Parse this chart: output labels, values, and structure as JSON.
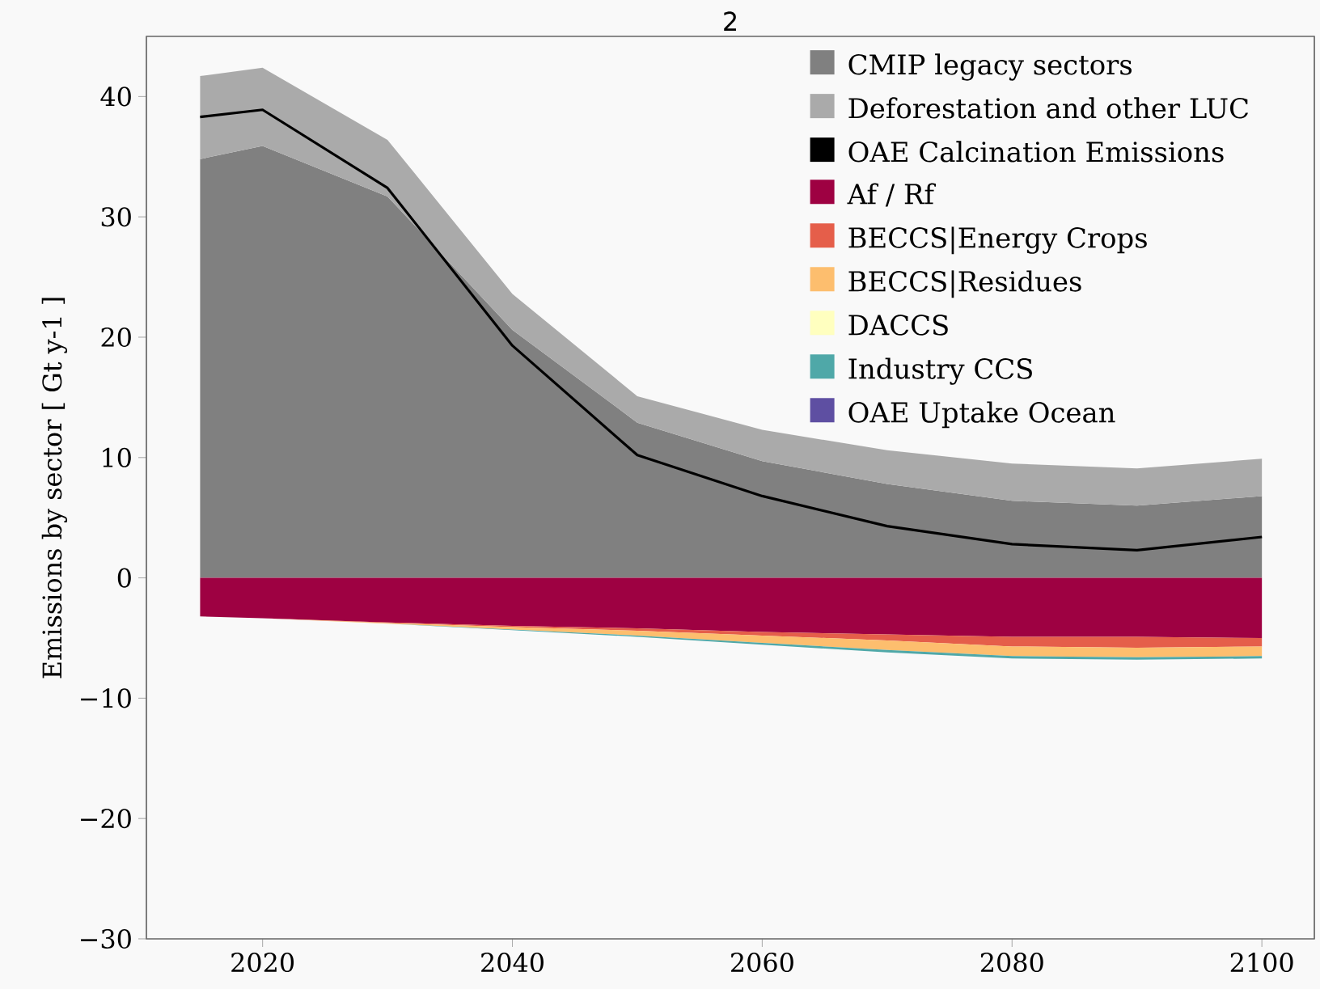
{
  "chart_data": [
    {
      "type": "area",
      "title": "2",
      "ylabel": "Emissions by sector [ Gt y-1 ]",
      "x": [
        2015,
        2020,
        2030,
        2040,
        2050,
        2060,
        2070,
        2080,
        2090,
        2100
      ],
      "xlim": [
        2010.7,
        2104.2
      ],
      "xticks": [
        2020,
        2040,
        2060,
        2080,
        2100
      ],
      "ylim": [
        -30,
        45
      ],
      "yticks": [
        {
          "value": -30,
          "label": "−30"
        },
        {
          "value": -20,
          "label": "−20"
        },
        {
          "value": -10,
          "label": "−10"
        },
        0,
        10,
        20,
        30,
        40
      ],
      "stacked": true,
      "legend": "top right",
      "series": [
        {
          "name": "CMIP legacy sectors",
          "color": "#808080",
          "values": [
            34.8,
            35.9,
            31.7,
            20.6,
            12.9,
            9.7,
            7.8,
            6.4,
            6.0,
            6.8
          ]
        },
        {
          "name": "Deforestation and other LUC",
          "color": "#aaaaaa",
          "values": [
            6.9,
            6.5,
            4.7,
            3.0,
            2.2,
            2.6,
            2.8,
            3.1,
            3.1,
            3.1
          ]
        },
        {
          "name": "OAE Calcination Emissions",
          "color": "#000000",
          "values": [
            null,
            null,
            null,
            null,
            null,
            null,
            null,
            null,
            null,
            null
          ]
        },
        {
          "type": "line",
          "color": "#000000",
          "values": [
            38.3,
            38.9,
            32.4,
            19.3,
            10.2,
            6.8,
            4.3,
            2.8,
            2.3,
            3.4
          ]
        }
      ]
    },
    {
      "type": "area",
      "x": [
        2015,
        2020,
        2030,
        2040,
        2050,
        2060,
        2070,
        2080,
        2090,
        2100
      ],
      "xlim": [
        2010.7,
        2104.2
      ],
      "xticks": [
        2020,
        2040,
        2060,
        2080,
        2100
      ],
      "ylim": [
        -30,
        45
      ],
      "yticks": [
        -30,
        -20,
        -10,
        0,
        10,
        20,
        30,
        40
      ],
      "tick_labels": false,
      "stacked": true,
      "legend": "top right",
      "series": [
        {
          "name": "Af / Rf",
          "color": "#9e0142",
          "values": [
            -3.2,
            -3.35,
            -3.7,
            -4.0,
            -4.2,
            -4.5,
            -4.7,
            -4.9,
            -4.9,
            -5.0
          ]
        },
        {
          "name": "BECCS|Energy Crops",
          "color": "#e55e4a",
          "values": [
            0,
            0,
            -0.05,
            -0.1,
            -0.2,
            -0.3,
            -0.5,
            -0.8,
            -0.9,
            -0.7
          ]
        },
        {
          "name": "BECCS|Residues",
          "color": "#fdbe6e",
          "values": [
            0,
            0,
            -0.05,
            -0.2,
            -0.4,
            -0.6,
            -0.8,
            -0.8,
            -0.8,
            -0.8
          ]
        },
        {
          "name": "DACCS",
          "color": "#ffffbf",
          "values": [
            null,
            null,
            null,
            null,
            null,
            null,
            null,
            null,
            null,
            null
          ]
        },
        {
          "name": "Industry CCS",
          "color": "#4fa8a8",
          "values": [
            0,
            0,
            0,
            -0.05,
            -0.1,
            -0.15,
            -0.2,
            -0.2,
            -0.2,
            -0.2
          ]
        },
        {
          "name": "OAE Uptake Ocean",
          "color": "#5e4fa2",
          "values": [
            null,
            null,
            null,
            null,
            null,
            null,
            null,
            null,
            null,
            null
          ]
        }
      ]
    }
  ]
}
